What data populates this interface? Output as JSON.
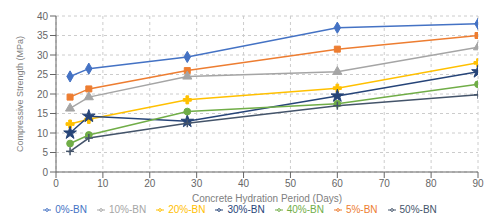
{
  "chart_data": {
    "type": "line",
    "xlabel": "Concrete Hydration Period (Days)",
    "ylabel": "Compressive Strength (MPa)",
    "x": [
      3,
      7,
      28,
      60,
      90
    ],
    "series": [
      {
        "name": "0%-BN",
        "color": "#4472C4",
        "marker": "diamond",
        "values": [
          24.5,
          26.5,
          29.5,
          37.0,
          38.0
        ]
      },
      {
        "name": "5%-BN",
        "color": "#ED7D31",
        "marker": "square",
        "values": [
          19.2,
          21.3,
          26.0,
          31.5,
          35.0
        ]
      },
      {
        "name": "10%-BN",
        "color": "#A5A5A5",
        "marker": "triangle",
        "values": [
          16.3,
          19.2,
          24.5,
          25.7,
          32.0
        ]
      },
      {
        "name": "20%-BN",
        "color": "#FFC000",
        "marker": "cross",
        "values": [
          12.3,
          13.5,
          18.5,
          21.5,
          28.0
        ]
      },
      {
        "name": "30%-BN",
        "color": "#264478",
        "marker": "star",
        "values": [
          10.0,
          14.3,
          13.0,
          19.5,
          25.7
        ]
      },
      {
        "name": "40%-BN",
        "color": "#70AD47",
        "marker": "circle",
        "values": [
          7.3,
          9.5,
          15.5,
          17.5,
          22.5
        ]
      },
      {
        "name": "50%-BN",
        "color": "#44546A",
        "marker": "plus",
        "values": [
          5.3,
          8.7,
          12.5,
          17.0,
          19.8
        ]
      }
    ],
    "xlim": [
      0,
      90
    ],
    "ylim": [
      0,
      40
    ],
    "xticks": [
      0,
      10,
      20,
      30,
      40,
      50,
      60,
      70,
      80,
      90
    ],
    "yticks": [
      0,
      5,
      10,
      15,
      20,
      25,
      30,
      35,
      40
    ],
    "grid": true,
    "legend": "bottom"
  }
}
